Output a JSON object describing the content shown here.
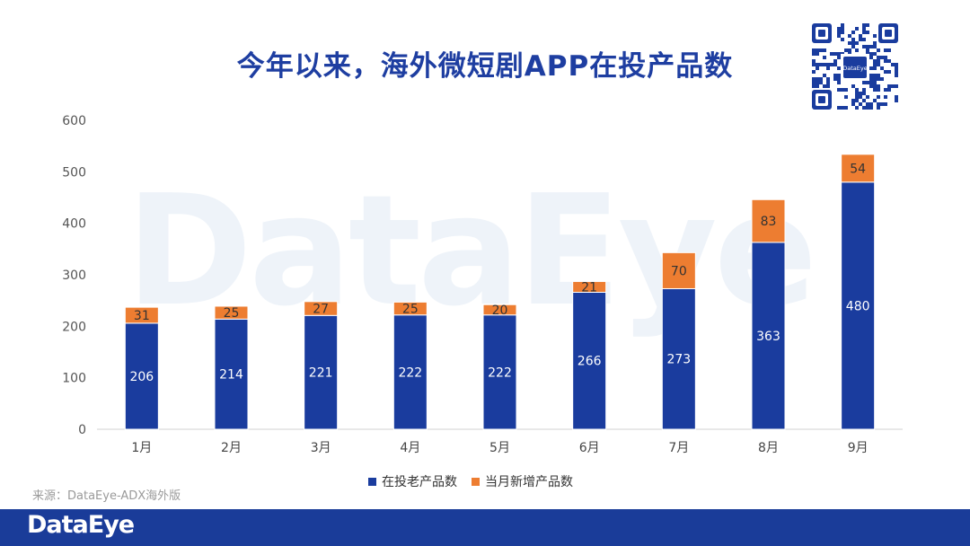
{
  "title": "今年以来，海外微短剧APP在投产品数",
  "watermark": "DataEye",
  "qr_center_label": "DataEye",
  "source": "来源：DataEye-ADX海外版",
  "footer_logo": "DataEye",
  "legend": [
    {
      "label": "在投老产品数",
      "color": "#1a3c9e"
    },
    {
      "label": "当月新增产品数",
      "color": "#ed7d31"
    }
  ],
  "chart_data": {
    "type": "bar",
    "stacked": true,
    "title": "今年以来，海外微短剧APP在投产品数",
    "categories": [
      "1月",
      "2月",
      "3月",
      "4月",
      "5月",
      "6月",
      "7月",
      "8月",
      "9月"
    ],
    "series": [
      {
        "name": "在投老产品数",
        "color": "#1a3c9e",
        "values": [
          206,
          214,
          221,
          222,
          222,
          266,
          273,
          363,
          480
        ]
      },
      {
        "name": "当月新增产品数",
        "color": "#ed7d31",
        "values": [
          31,
          25,
          27,
          25,
          20,
          21,
          70,
          83,
          54
        ]
      }
    ],
    "yticks": [
      0,
      100,
      200,
      300,
      400,
      500,
      600
    ],
    "ylim": [
      0,
      600
    ],
    "xlabel": "",
    "ylabel": "",
    "legend_position": "bottom"
  }
}
